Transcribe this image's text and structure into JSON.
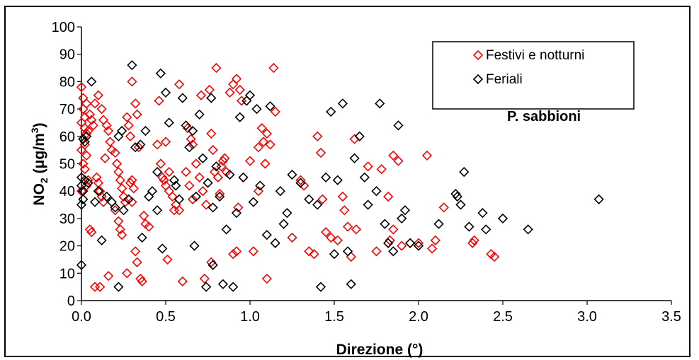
{
  "chart_data": {
    "type": "scatter",
    "xlabel": "Direzione (°)",
    "ylabel_parts": {
      "base": "NO",
      "sub": "2",
      "unit_open": " (",
      "mu": "μ",
      "unit_mid": "g/m",
      "sup": "3",
      "unit_close": ")"
    },
    "xlim": [
      0,
      3.5
    ],
    "ylim": [
      0,
      100
    ],
    "x_ticks": [
      "0.0",
      "0.5",
      "1.0",
      "1.5",
      "2.0",
      "2.5",
      "3.0",
      "3.5"
    ],
    "y_ticks": [
      "0",
      "10",
      "20",
      "30",
      "40",
      "50",
      "60",
      "70",
      "80",
      "90",
      "100"
    ],
    "annotation": "P. sabbioni",
    "legend_position": "top-right",
    "grid": false,
    "series": [
      {
        "name": "Festivi e notturni",
        "color": "#ff0000",
        "marker": "diamond",
        "points": [
          [
            0.0,
            78
          ],
          [
            0.01,
            74
          ],
          [
            0.01,
            70
          ],
          [
            0.02,
            67
          ],
          [
            0.0,
            65
          ],
          [
            0.02,
            63
          ],
          [
            0.03,
            61
          ],
          [
            0.01,
            59
          ],
          [
            0.02,
            57
          ],
          [
            0.0,
            55
          ],
          [
            0.03,
            53
          ],
          [
            0.01,
            50
          ],
          [
            0.02,
            48
          ],
          [
            0.04,
            44
          ],
          [
            0.03,
            42
          ],
          [
            0.0,
            40
          ],
          [
            0.05,
            68
          ],
          [
            0.06,
            66
          ],
          [
            0.07,
            64
          ],
          [
            0.04,
            62
          ],
          [
            0.08,
            72
          ],
          [
            0.03,
            72
          ],
          [
            0.05,
            26
          ],
          [
            0.06,
            25
          ],
          [
            0.09,
            45
          ],
          [
            0.1,
            43
          ],
          [
            0.11,
            40
          ],
          [
            0.12,
            38
          ],
          [
            0.13,
            36
          ],
          [
            0.08,
            5
          ],
          [
            0.11,
            5
          ],
          [
            0.1,
            75
          ],
          [
            0.12,
            70
          ],
          [
            0.13,
            66
          ],
          [
            0.15,
            64
          ],
          [
            0.16,
            62
          ],
          [
            0.17,
            58
          ],
          [
            0.18,
            55
          ],
          [
            0.2,
            54
          ],
          [
            0.21,
            50
          ],
          [
            0.22,
            47
          ],
          [
            0.23,
            44
          ],
          [
            0.24,
            41
          ],
          [
            0.14,
            52
          ],
          [
            0.16,
            9
          ],
          [
            0.2,
            33
          ],
          [
            0.22,
            29
          ],
          [
            0.23,
            26
          ],
          [
            0.24,
            24
          ],
          [
            0.25,
            38
          ],
          [
            0.26,
            36
          ],
          [
            0.27,
            67
          ],
          [
            0.28,
            64
          ],
          [
            0.29,
            60
          ],
          [
            0.3,
            44
          ],
          [
            0.31,
            41
          ],
          [
            0.3,
            80
          ],
          [
            0.32,
            72
          ],
          [
            0.33,
            68
          ],
          [
            0.29,
            43
          ],
          [
            0.32,
            18
          ],
          [
            0.33,
            14
          ],
          [
            0.35,
            8
          ],
          [
            0.36,
            7
          ],
          [
            0.27,
            10
          ],
          [
            0.3,
            36
          ],
          [
            0.34,
            56
          ],
          [
            0.37,
            31
          ],
          [
            0.38,
            28
          ],
          [
            0.4,
            27
          ],
          [
            0.45,
            57
          ],
          [
            0.47,
            50
          ],
          [
            0.48,
            45
          ],
          [
            0.5,
            42
          ],
          [
            0.52,
            40
          ],
          [
            0.54,
            38
          ],
          [
            0.56,
            35
          ],
          [
            0.58,
            33
          ],
          [
            0.5,
            58
          ],
          [
            0.52,
            47
          ],
          [
            0.55,
            33
          ],
          [
            0.46,
            73
          ],
          [
            0.49,
            44
          ],
          [
            0.51,
            15
          ],
          [
            0.6,
            7
          ],
          [
            0.58,
            79
          ],
          [
            0.62,
            47
          ],
          [
            0.64,
            42
          ],
          [
            0.66,
            37
          ],
          [
            0.63,
            63
          ],
          [
            0.65,
            59
          ],
          [
            0.66,
            57
          ],
          [
            0.68,
            50
          ],
          [
            0.7,
            45
          ],
          [
            0.72,
            40
          ],
          [
            0.74,
            35
          ],
          [
            0.71,
            75
          ],
          [
            0.73,
            8
          ],
          [
            0.76,
            77
          ],
          [
            0.77,
            61
          ],
          [
            0.78,
            55
          ],
          [
            0.79,
            47
          ],
          [
            0.8,
            85
          ],
          [
            0.81,
            45
          ],
          [
            0.82,
            39
          ],
          [
            0.83,
            49
          ],
          [
            0.84,
            51
          ],
          [
            0.85,
            52
          ],
          [
            0.86,
            47
          ],
          [
            0.77,
            14
          ],
          [
            0.88,
            76
          ],
          [
            0.9,
            79
          ],
          [
            0.92,
            81
          ],
          [
            0.94,
            77
          ],
          [
            0.95,
            73
          ],
          [
            0.9,
            17
          ],
          [
            0.92,
            18
          ],
          [
            0.93,
            34
          ],
          [
            0.96,
            45
          ],
          [
            1.0,
            51
          ],
          [
            1.02,
            18
          ],
          [
            1.05,
            56
          ],
          [
            1.07,
            63
          ],
          [
            1.08,
            58
          ],
          [
            1.09,
            50
          ],
          [
            1.1,
            61
          ],
          [
            1.12,
            57
          ],
          [
            1.15,
            69
          ],
          [
            1.14,
            85
          ],
          [
            1.1,
            8
          ],
          [
            1.05,
            40
          ],
          [
            1.25,
            23
          ],
          [
            1.3,
            44
          ],
          [
            1.32,
            42
          ],
          [
            1.35,
            18
          ],
          [
            1.38,
            17
          ],
          [
            1.4,
            60
          ],
          [
            1.42,
            54
          ],
          [
            1.43,
            37
          ],
          [
            1.45,
            25
          ],
          [
            1.48,
            23
          ],
          [
            1.52,
            22
          ],
          [
            1.55,
            38
          ],
          [
            1.56,
            33
          ],
          [
            1.58,
            27
          ],
          [
            1.6,
            16
          ],
          [
            1.62,
            59
          ],
          [
            1.63,
            26
          ],
          [
            1.7,
            49
          ],
          [
            1.75,
            18
          ],
          [
            1.78,
            48
          ],
          [
            1.82,
            38
          ],
          [
            1.83,
            22
          ],
          [
            1.85,
            53
          ],
          [
            1.88,
            51
          ],
          [
            1.85,
            26
          ],
          [
            1.9,
            20
          ],
          [
            1.95,
            21
          ],
          [
            2.0,
            21
          ],
          [
            2.05,
            53
          ],
          [
            2.08,
            19
          ],
          [
            2.1,
            22
          ],
          [
            2.15,
            34
          ],
          [
            2.32,
            21
          ],
          [
            2.33,
            22
          ],
          [
            2.43,
            17
          ],
          [
            2.45,
            16
          ]
        ]
      },
      {
        "name": "Feriali",
        "color": "#000000",
        "marker": "diamond",
        "points": [
          [
            0.0,
            13
          ],
          [
            0.0,
            35
          ],
          [
            0.01,
            37
          ],
          [
            0.0,
            42
          ],
          [
            0.02,
            44
          ],
          [
            0.0,
            45
          ],
          [
            0.01,
            40
          ],
          [
            0.02,
            58
          ],
          [
            0.03,
            60
          ],
          [
            0.04,
            43
          ],
          [
            0.01,
            59
          ],
          [
            0.06,
            80
          ],
          [
            0.08,
            36
          ],
          [
            0.1,
            40
          ],
          [
            0.12,
            22
          ],
          [
            0.15,
            38
          ],
          [
            0.18,
            36
          ],
          [
            0.2,
            34
          ],
          [
            0.22,
            5
          ],
          [
            0.22,
            60
          ],
          [
            0.24,
            62
          ],
          [
            0.25,
            33
          ],
          [
            0.28,
            37
          ],
          [
            0.3,
            86
          ],
          [
            0.32,
            56
          ],
          [
            0.35,
            57
          ],
          [
            0.36,
            23
          ],
          [
            0.38,
            62
          ],
          [
            0.4,
            38
          ],
          [
            0.42,
            40
          ],
          [
            0.45,
            33
          ],
          [
            0.45,
            47
          ],
          [
            0.47,
            83
          ],
          [
            0.48,
            19
          ],
          [
            0.5,
            76
          ],
          [
            0.52,
            65
          ],
          [
            0.55,
            44
          ],
          [
            0.56,
            42
          ],
          [
            0.58,
            37
          ],
          [
            0.6,
            74
          ],
          [
            0.62,
            64
          ],
          [
            0.64,
            56
          ],
          [
            0.66,
            62
          ],
          [
            0.67,
            20
          ],
          [
            0.68,
            38
          ],
          [
            0.7,
            68
          ],
          [
            0.72,
            52
          ],
          [
            0.74,
            5
          ],
          [
            0.75,
            43
          ],
          [
            0.77,
            74
          ],
          [
            0.78,
            13
          ],
          [
            0.78,
            34
          ],
          [
            0.8,
            49
          ],
          [
            0.82,
            38
          ],
          [
            0.84,
            6
          ],
          [
            0.86,
            26
          ],
          [
            0.88,
            46
          ],
          [
            0.9,
            5
          ],
          [
            0.92,
            32
          ],
          [
            0.94,
            67
          ],
          [
            0.96,
            45
          ],
          [
            0.98,
            73
          ],
          [
            1.0,
            75
          ],
          [
            1.02,
            36
          ],
          [
            1.04,
            70
          ],
          [
            1.06,
            42
          ],
          [
            1.1,
            24
          ],
          [
            1.12,
            71
          ],
          [
            1.15,
            21
          ],
          [
            1.18,
            40
          ],
          [
            1.2,
            28
          ],
          [
            1.22,
            32
          ],
          [
            1.25,
            46
          ],
          [
            1.3,
            43
          ],
          [
            1.35,
            37
          ],
          [
            1.4,
            35
          ],
          [
            1.42,
            5
          ],
          [
            1.45,
            45
          ],
          [
            1.48,
            69
          ],
          [
            1.5,
            17
          ],
          [
            1.52,
            44
          ],
          [
            1.55,
            72
          ],
          [
            1.58,
            18
          ],
          [
            1.6,
            6
          ],
          [
            1.62,
            52
          ],
          [
            1.65,
            60
          ],
          [
            1.68,
            45
          ],
          [
            1.7,
            35
          ],
          [
            1.75,
            40
          ],
          [
            1.77,
            72
          ],
          [
            1.8,
            28
          ],
          [
            1.82,
            21
          ],
          [
            1.85,
            18
          ],
          [
            1.88,
            64
          ],
          [
            1.9,
            30
          ],
          [
            1.92,
            33
          ],
          [
            1.95,
            21
          ],
          [
            2.0,
            20
          ],
          [
            2.12,
            28
          ],
          [
            2.22,
            39
          ],
          [
            2.23,
            38
          ],
          [
            2.25,
            35
          ],
          [
            2.27,
            47
          ],
          [
            2.3,
            27
          ],
          [
            2.38,
            32
          ],
          [
            2.4,
            26
          ],
          [
            2.5,
            30
          ],
          [
            2.65,
            26
          ],
          [
            3.07,
            37
          ]
        ]
      }
    ]
  }
}
